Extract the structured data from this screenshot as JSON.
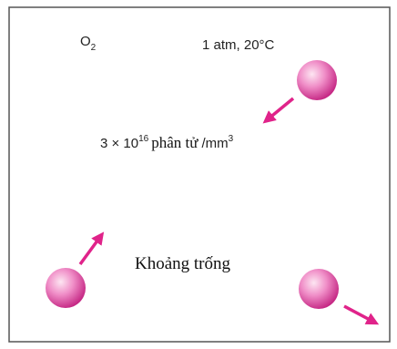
{
  "labels": {
    "gas": {
      "symbol": "O",
      "subscript": "2"
    },
    "conditions": "1 atm, 20°C",
    "density": {
      "coefficient": "3 × 10",
      "exponent": "16",
      "unit": "phân tử",
      "per": "/mm",
      "per_exponent": "3"
    },
    "space": "Khoảng trống"
  }
}
